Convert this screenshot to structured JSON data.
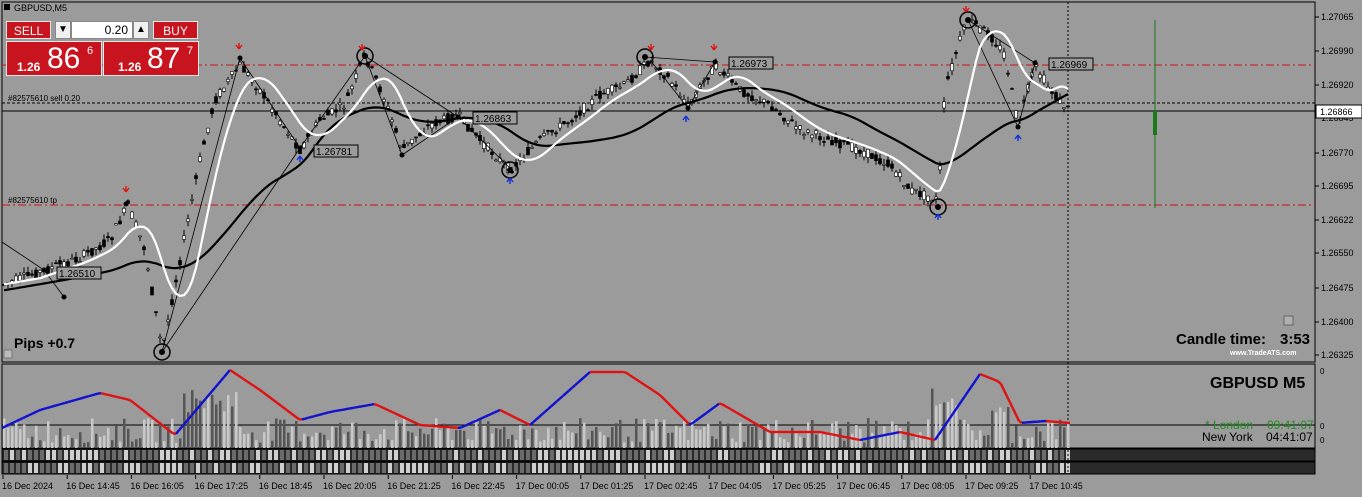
{
  "window_title": "GBPUSD,M5",
  "trade_panel": {
    "sell_label": "SELL",
    "buy_label": "BUY",
    "volume": "0.20",
    "sell_price_prefix": "1.26",
    "sell_price_big": "86",
    "sell_price_sup": "6",
    "buy_price_prefix": "1.26",
    "buy_price_big": "87",
    "buy_price_sup": "7"
  },
  "price_axis": {
    "ticks": [
      "1.27065",
      "1.26990",
      "1.26920",
      "1.26845",
      "1.26770",
      "1.26695",
      "1.26622",
      "1.26550",
      "1.26475",
      "1.26400",
      "1.26325"
    ],
    "current_price": "1.26866"
  },
  "time_axis": {
    "labels": [
      "16 Dec 2024",
      "16 Dec 14:45",
      "16 Dec 16:05",
      "16 Dec 17:25",
      "16 Dec 18:45",
      "16 Dec 20:05",
      "16 Dec 21:25",
      "16 Dec 22:45",
      "17 Dec 00:05",
      "17 Dec 01:25",
      "17 Dec 02:45",
      "17 Dec 04:05",
      "17 Dec 05:25",
      "17 Dec 06:45",
      "17 Dec 08:05",
      "17 Dec 09:25",
      "17 Dec 10:45"
    ]
  },
  "order_lines": {
    "sell_label": "#82575610 sell 0.20",
    "tp_label": "#82575610 tp"
  },
  "price_labels": [
    "1.26973",
    "1.26969",
    "1.26863",
    "1.26781",
    "1.26510"
  ],
  "pips_text": "Pips +0.7",
  "candle_time_label": "Candle time:",
  "candle_time_value": "3:53",
  "watermark": "www.TradeATS.com",
  "sub_panel": {
    "symbol": "GBPUSD",
    "timeframe": "M5",
    "london_label": "* London",
    "london_time": "09:41:07",
    "newyork_label": "New York",
    "newyork_time": "04:41:07",
    "scale_top": "0",
    "scale_mid": "0",
    "scale_bottom": "0"
  },
  "colors": {
    "background": "#9b9b9b",
    "candle": "#000000",
    "ma_fast": "#ffffff",
    "ma_slow": "#000000",
    "sell_red": "#c8141e",
    "dashed_red": "#cc1111",
    "osc_blue": "#1010d0",
    "osc_red": "#e01010",
    "histogram": "#c8c8c8",
    "green_bar": "#1a7a1a"
  }
}
